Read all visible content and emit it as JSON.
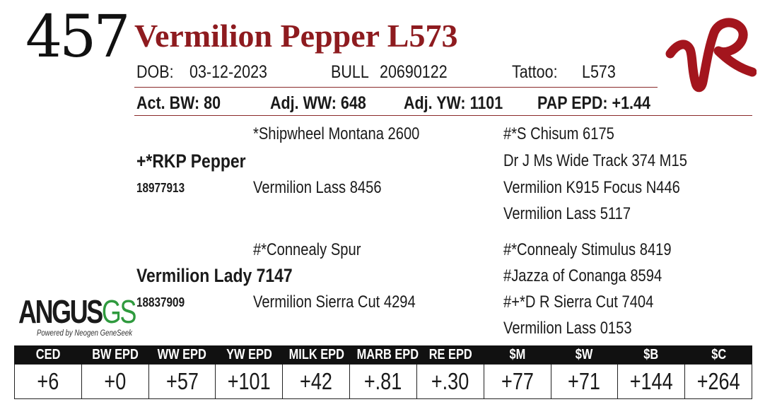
{
  "lot_number": "457",
  "animal_name": "Vermilion Pepper L573",
  "info_row1": {
    "dob_label": "DOB:",
    "dob_value": "03-12-2023",
    "sex_label": "BULL",
    "reg_number": "20690122",
    "tattoo_label": "Tattoo:",
    "tattoo_value": "L573"
  },
  "info_row2": {
    "act_bw": "Act. BW: 80",
    "adj_ww": "Adj. WW: 648",
    "adj_yw": "Adj. YW: 1101",
    "pap_epd": "PAP EPD: +1.44"
  },
  "pedigree": {
    "sire": {
      "name": "+*RKP Pepper",
      "reg": "18977913",
      "sire": "*Shipwheel Montana 2600",
      "dam": "Vermilion Lass 8456",
      "grand": [
        "#*S Chisum 6175",
        "Dr J Ms Wide Track 374 M15",
        "Vermilion K915 Focus N446",
        "Vermilion Lass 5117"
      ]
    },
    "dam": {
      "name": "Vermilion Lady 7147",
      "reg": "18837909",
      "sire": "#*Connealy Spur",
      "dam": "Vermilion Sierra Cut 4294",
      "grand": [
        "#*Connealy Stimulus 8419",
        "#Jazza of Conanga 8594",
        "#+*D R Sierra Cut 7404",
        "Vermilion Lass 0153"
      ]
    }
  },
  "logos": {
    "breeder_mark": "VR",
    "angus_word": "ANGUS",
    "angus_suffix": "GS",
    "angus_tagline": "Powered by Neogen GeneSeek"
  },
  "epd": {
    "headers": [
      "CED",
      "BW EPD",
      "WW EPD",
      "YW EPD",
      "MILK EPD",
      "MARB EPD",
      "RE EPD",
      "$M",
      "$W",
      "$B",
      "$C"
    ],
    "values": [
      "+6",
      "+0",
      "+57",
      "+101",
      "+42",
      "+.81",
      "+.30",
      "+77",
      "+71",
      "+144",
      "+264"
    ]
  },
  "colors": {
    "name_red": "#8e1b1f",
    "logo_red": "#a3151d",
    "angus_green": "#2f9a3e",
    "header_black": "#111111"
  }
}
